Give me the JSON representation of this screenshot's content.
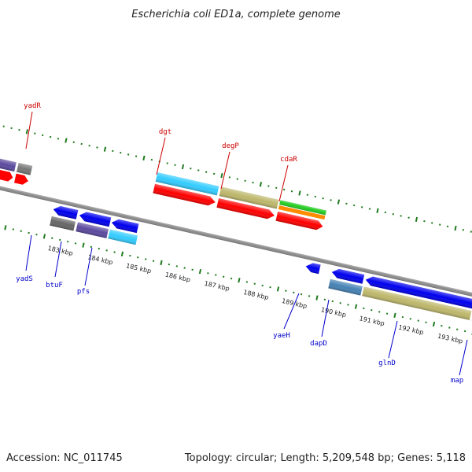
{
  "title": "Escherichia coli ED1a, complete genome",
  "footer": {
    "accession": "Accession: NC_011745",
    "summary": "Topology: circular; Length: 5,209,548 bp; Genes: 5,118"
  },
  "colors": {
    "forward_label": "#cc0000",
    "reverse_label": "#0000cc",
    "ruler_tick": "#1f7a1f",
    "backbone": "#8a8a8a"
  },
  "tick_labels": [
    "183 kbp",
    "184 kbp",
    "185 kbp",
    "186 kbp",
    "187 kbp",
    "188 kbp",
    "189 kbp",
    "190 kbp",
    "191 kbp",
    "192 kbp",
    "193 kbp"
  ],
  "forward_genes": [
    "yadR",
    "dgt",
    "degP",
    "cdaR"
  ],
  "reverse_genes": [
    "yadS",
    "btuF",
    "pfs",
    "yaeH",
    "dapD",
    "glnD",
    "map"
  ]
}
